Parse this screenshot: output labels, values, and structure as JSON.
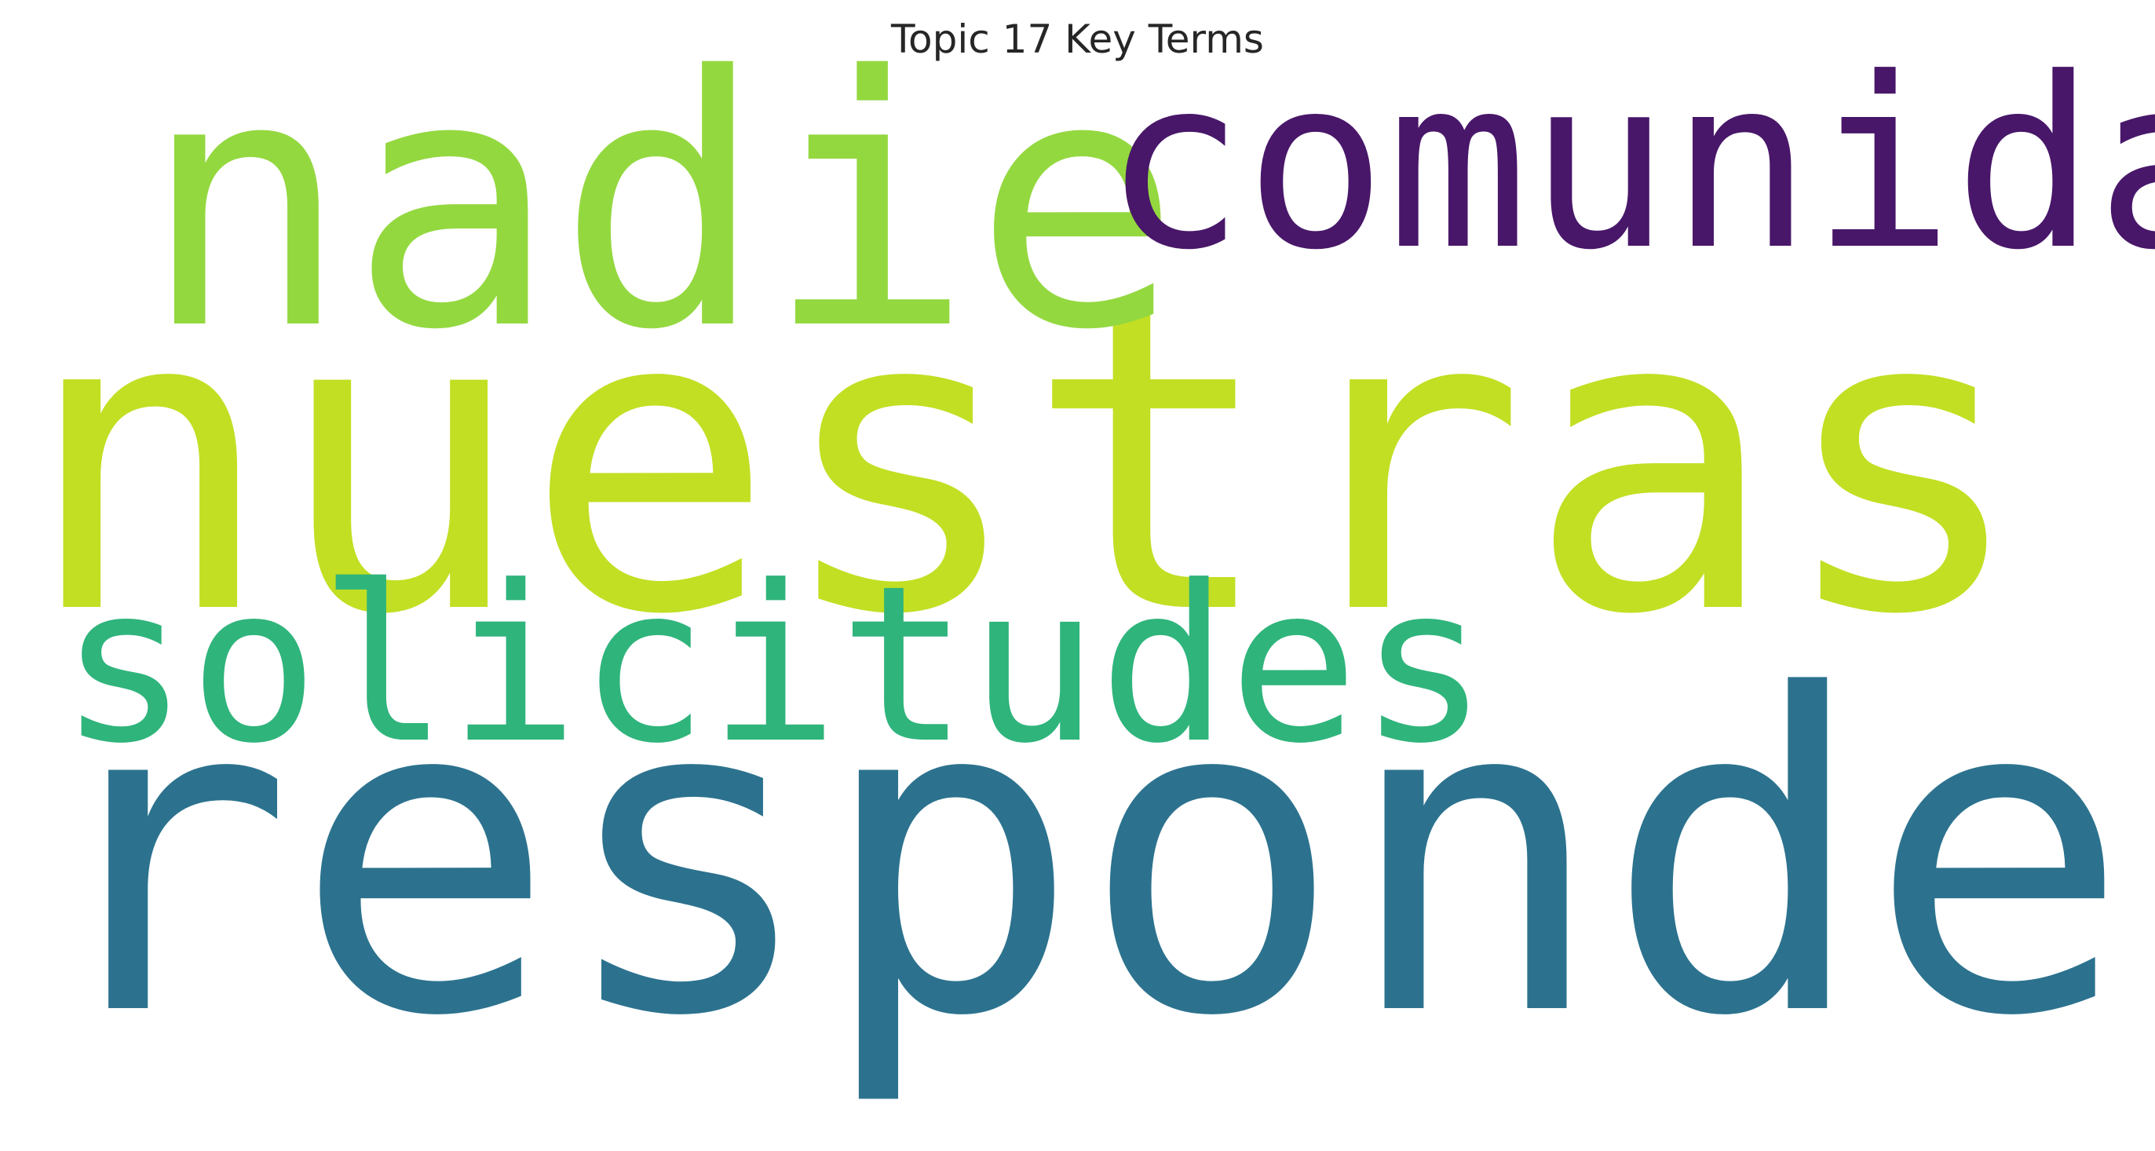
{
  "title": "Topic 17 Key Terms",
  "words": [
    {
      "text": "responde",
      "color": "#2c728e"
    },
    {
      "text": "nuestras",
      "color": "#c2df23"
    },
    {
      "text": "nadie",
      "color": "#94d840"
    },
    {
      "text": "comunidad",
      "color": "#481769"
    },
    {
      "text": "solicitudes",
      "color": "#2fb47c"
    }
  ]
}
